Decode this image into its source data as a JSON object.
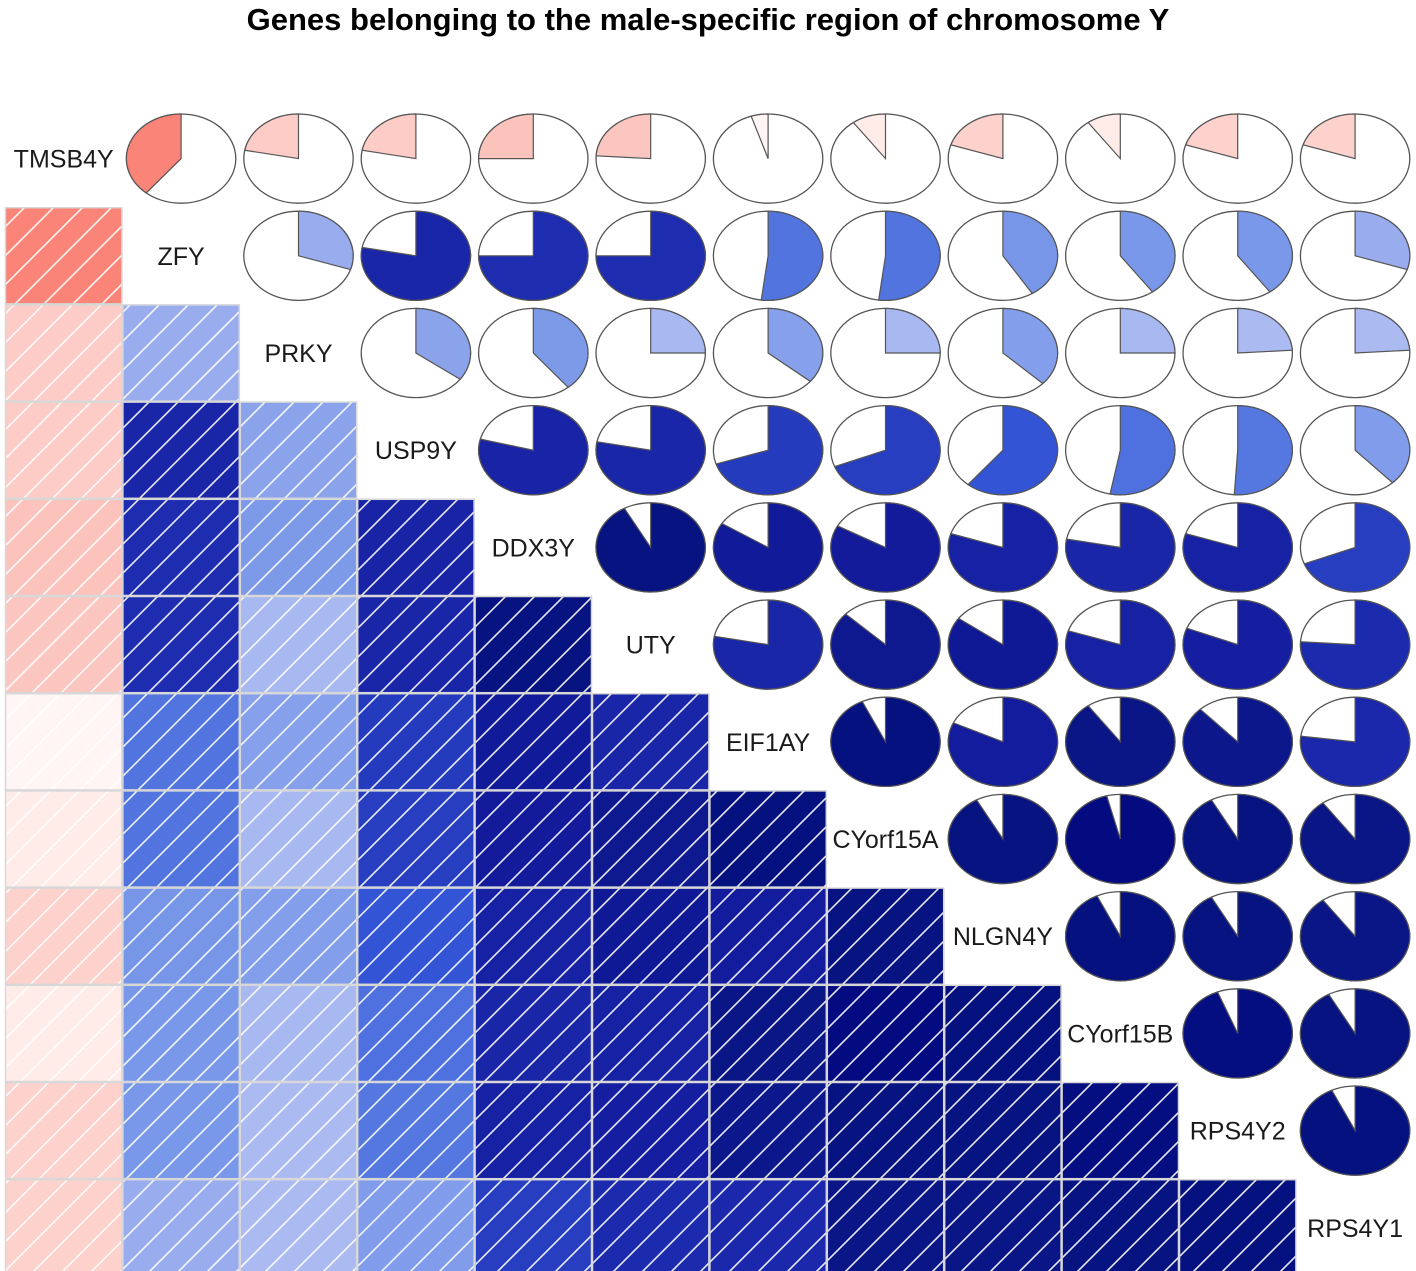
{
  "chart_data": {
    "type": "heatmap",
    "subtype": "correlogram (lower: shaded squares, upper: pie)",
    "title": "Genes belonging to the male-specific region of chromosome Y",
    "variables": [
      "TMSB4Y",
      "ZFY",
      "PRKY",
      "USP9Y",
      "DDX3Y",
      "UTY",
      "EIF1AY",
      "CYorf15A",
      "NLGN4Y",
      "CYorf15B",
      "RPS4Y2",
      "RPS4Y1"
    ],
    "value_range": [
      -1,
      1
    ],
    "colors": {
      "negative": "#fa8072",
      "neutral": "#ffffff",
      "positive": "#00007f",
      "grid": "#d8d8d8"
    },
    "correlation_matrix": [
      [
        1.0,
        -0.39,
        -0.22,
        -0.22,
        -0.25,
        -0.24,
        -0.05,
        -0.1,
        -0.2,
        -0.1,
        -0.2,
        -0.2
      ],
      [
        -0.39,
        1.0,
        0.3,
        0.78,
        0.75,
        0.75,
        0.52,
        0.52,
        0.41,
        0.4,
        0.4,
        0.3
      ],
      [
        -0.22,
        0.3,
        1.0,
        0.35,
        0.39,
        0.25,
        0.36,
        0.25,
        0.37,
        0.25,
        0.24,
        0.24
      ],
      [
        -0.22,
        0.78,
        0.35,
        1.0,
        0.79,
        0.78,
        0.7,
        0.69,
        0.61,
        0.53,
        0.51,
        0.38
      ],
      [
        -0.25,
        0.75,
        0.39,
        0.79,
        1.0,
        0.92,
        0.84,
        0.83,
        0.8,
        0.78,
        0.8,
        0.69
      ],
      [
        -0.24,
        0.75,
        0.25,
        0.78,
        0.92,
        1.0,
        0.78,
        0.87,
        0.85,
        0.8,
        0.81,
        0.76
      ],
      [
        -0.05,
        0.52,
        0.36,
        0.7,
        0.84,
        0.78,
        1.0,
        0.93,
        0.82,
        0.9,
        0.88,
        0.77
      ],
      [
        -0.1,
        0.52,
        0.25,
        0.69,
        0.83,
        0.87,
        0.93,
        1.0,
        0.92,
        0.96,
        0.92,
        0.9
      ],
      [
        -0.2,
        0.41,
        0.37,
        0.61,
        0.8,
        0.85,
        0.82,
        0.92,
        1.0,
        0.93,
        0.92,
        0.9
      ],
      [
        -0.1,
        0.4,
        0.25,
        0.53,
        0.78,
        0.8,
        0.9,
        0.96,
        0.93,
        1.0,
        0.94,
        0.92
      ],
      [
        -0.2,
        0.4,
        0.24,
        0.51,
        0.8,
        0.81,
        0.88,
        0.92,
        0.92,
        0.94,
        1.0,
        0.93
      ],
      [
        -0.2,
        0.3,
        0.24,
        0.38,
        0.69,
        0.76,
        0.77,
        0.9,
        0.9,
        0.92,
        0.93,
        1.0
      ]
    ],
    "lower_panel": "shade (diagonal hatching)",
    "upper_panel": "pie",
    "diagonal_panel": "variable names",
    "legend": "none"
  }
}
